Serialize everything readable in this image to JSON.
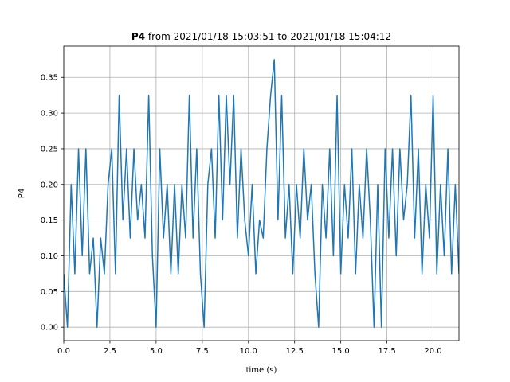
{
  "chart_data": {
    "type": "line",
    "title": {
      "name": "P4",
      "text": "from 2021/01/18 15:03:51 to 2021/01/18 15:04:12"
    },
    "x_label": "time (s)",
    "y_label": "P4",
    "color": "#1f77b4",
    "grid": true,
    "xlim": [
      0,
      21.4
    ],
    "ylim": [
      -0.01875,
      0.39375
    ],
    "xticks": [
      {
        "value": 0,
        "label": "0.0"
      },
      {
        "value": 2.5,
        "label": "2.5"
      },
      {
        "value": 5,
        "label": "5.0"
      },
      {
        "value": 7.5,
        "label": "7.5"
      },
      {
        "value": 10,
        "label": "10.0"
      },
      {
        "value": 12.5,
        "label": "12.5"
      },
      {
        "value": 15,
        "label": "15.0"
      },
      {
        "value": 17.5,
        "label": "17.5"
      },
      {
        "value": 20,
        "label": "20.0"
      }
    ],
    "yticks": [
      {
        "value": 0,
        "label": "0.00"
      },
      {
        "value": 0.05,
        "label": "0.05"
      },
      {
        "value": 0.1,
        "label": "0.10"
      },
      {
        "value": 0.15,
        "label": "0.15"
      },
      {
        "value": 0.2,
        "label": "0.20"
      },
      {
        "value": 0.25,
        "label": "0.25"
      },
      {
        "value": 0.3,
        "label": "0.30"
      },
      {
        "value": 0.35,
        "label": "0.35"
      }
    ],
    "x": [
      0,
      0.2,
      0.4,
      0.6,
      0.8,
      1.0,
      1.2,
      1.4,
      1.6,
      1.8,
      2.0,
      2.2,
      2.4,
      2.6,
      2.8,
      3.0,
      3.2,
      3.4,
      3.6,
      3.8,
      4.0,
      4.2,
      4.4,
      4.6,
      4.8,
      5.0,
      5.2,
      5.4,
      5.6,
      5.8,
      6.0,
      6.2,
      6.4,
      6.6,
      6.8,
      7.0,
      7.2,
      7.4,
      7.6,
      7.8,
      8.0,
      8.2,
      8.4,
      8.6,
      8.8,
      9.0,
      9.2,
      9.4,
      9.6,
      9.8,
      10.0,
      10.2,
      10.4,
      10.6,
      10.8,
      11.0,
      11.2,
      11.4,
      11.6,
      11.8,
      12.0,
      12.2,
      12.4,
      12.6,
      12.8,
      13.0,
      13.2,
      13.4,
      13.6,
      13.8,
      14.0,
      14.2,
      14.4,
      14.6,
      14.8,
      15.0,
      15.2,
      15.4,
      15.6,
      15.8,
      16.0,
      16.2,
      16.4,
      16.6,
      16.8,
      17.0,
      17.2,
      17.4,
      17.6,
      17.8,
      18.0,
      18.2,
      18.4,
      18.6,
      18.8,
      19.0,
      19.2,
      19.4,
      19.6,
      19.8,
      20.0,
      20.2,
      20.4,
      20.6,
      20.8,
      21.0,
      21.2,
      21.4
    ],
    "values": [
      0.075,
      0,
      0.2,
      0.075,
      0.25,
      0.1,
      0.25,
      0.075,
      0.125,
      0,
      0.125,
      0.075,
      0.2,
      0.25,
      0.075,
      0.325,
      0.15,
      0.25,
      0.125,
      0.25,
      0.15,
      0.2,
      0.125,
      0.325,
      0.1,
      0,
      0.25,
      0.125,
      0.2,
      0.075,
      0.2,
      0.075,
      0.2,
      0.125,
      0.325,
      0.125,
      0.25,
      0.075,
      0,
      0.2,
      0.25,
      0.125,
      0.325,
      0.15,
      0.325,
      0.2,
      0.325,
      0.125,
      0.25,
      0.15,
      0.1,
      0.2,
      0.075,
      0.15,
      0.125,
      0.25,
      0.325,
      0.375,
      0.15,
      0.325,
      0.125,
      0.2,
      0.075,
      0.2,
      0.125,
      0.25,
      0.15,
      0.2,
      0.075,
      0,
      0.2,
      0.125,
      0.25,
      0.1,
      0.325,
      0.075,
      0.2,
      0.125,
      0.25,
      0.075,
      0.2,
      0.125,
      0.25,
      0.15,
      0,
      0.2,
      0,
      0.25,
      0.125,
      0.25,
      0.1,
      0.25,
      0.15,
      0.2,
      0.325,
      0.125,
      0.25,
      0.075,
      0.2,
      0.125,
      0.325,
      0.075,
      0.2,
      0.1,
      0.25,
      0.075,
      0.2,
      0.075
    ]
  }
}
